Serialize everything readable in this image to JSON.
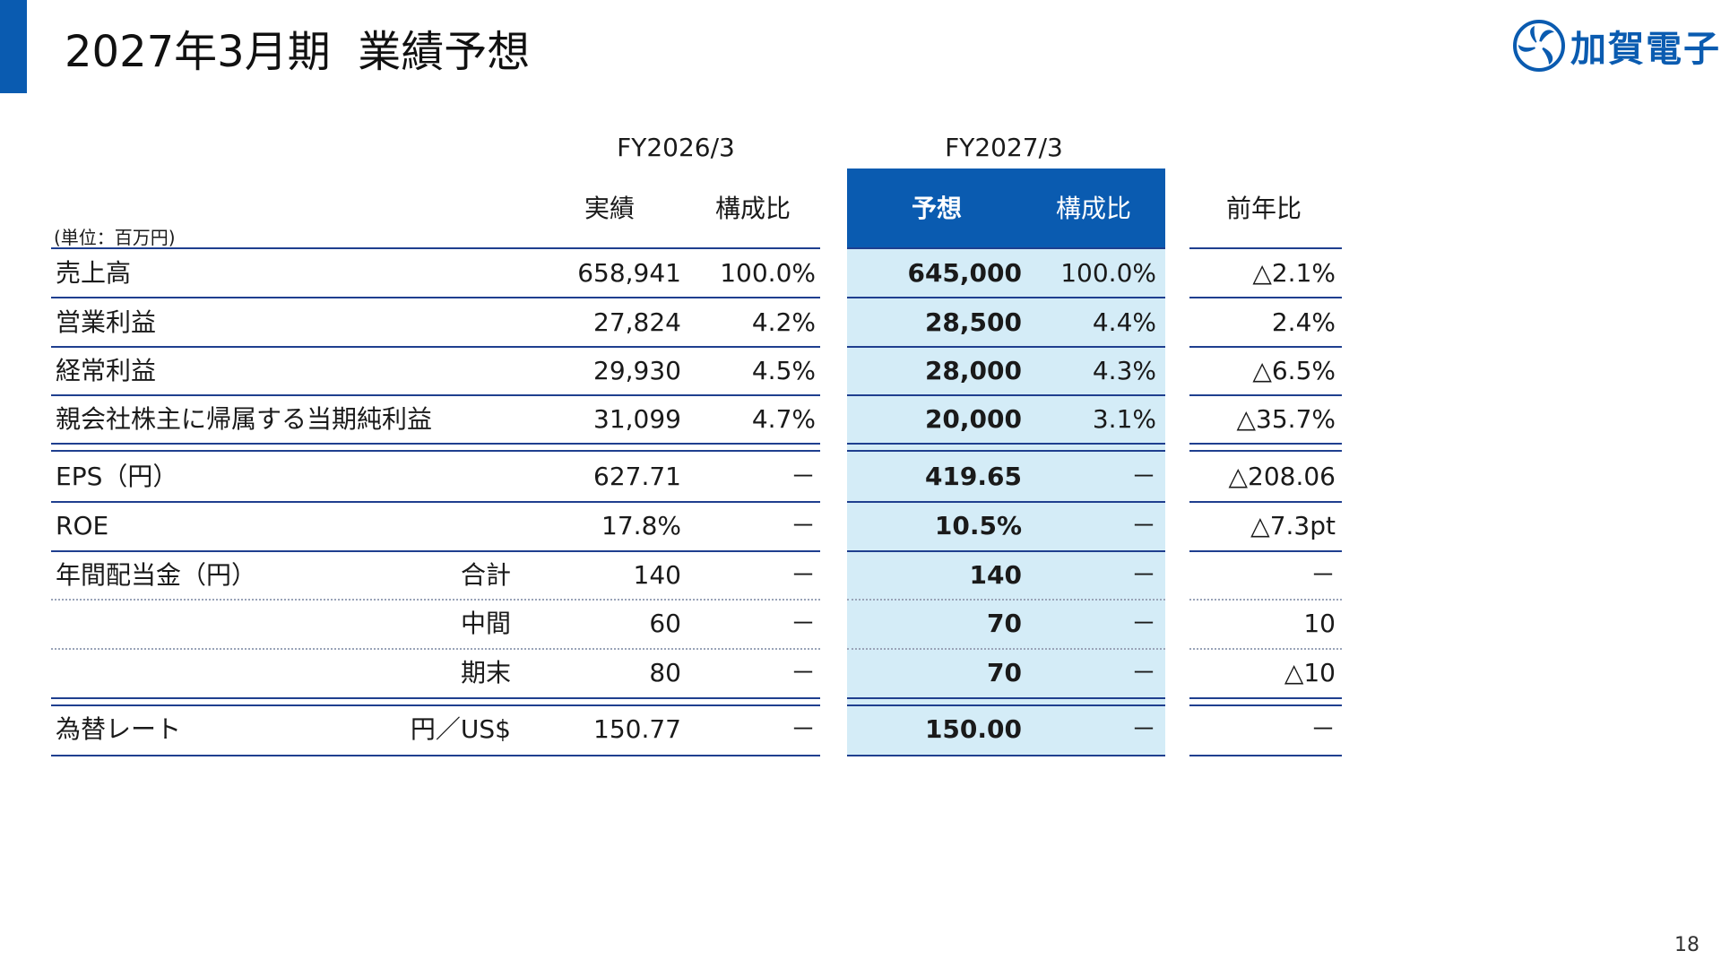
{
  "header": {
    "title": "2027年3月期  業績予想"
  },
  "logo": {
    "text": "加賀電子"
  },
  "page_number": "18",
  "table": {
    "unit_label": "(単位：百万円)",
    "periods": {
      "actual": "FY2026/3",
      "forecast": "FY2027/3"
    },
    "columns": {
      "actual": "実績",
      "actual_ratio": "構成比",
      "forecast": "予想",
      "forecast_ratio": "構成比",
      "yoy": "前年比"
    },
    "rows": [
      {
        "label": "売上高",
        "sub": "",
        "actual": "658,941",
        "actual_ratio": "100.0%",
        "forecast": "645,000",
        "forecast_ratio": "100.0%",
        "yoy": "△2.1%"
      },
      {
        "label": "営業利益",
        "sub": "",
        "actual": "27,824",
        "actual_ratio": "4.2%",
        "forecast": "28,500",
        "forecast_ratio": "4.4%",
        "yoy": "2.4%"
      },
      {
        "label": "経常利益",
        "sub": "",
        "actual": "29,930",
        "actual_ratio": "4.5%",
        "forecast": "28,000",
        "forecast_ratio": "4.3%",
        "yoy": "△6.5%"
      },
      {
        "label": "親会社株主に帰属する当期純利益",
        "sub": "",
        "actual": "31,099",
        "actual_ratio": "4.7%",
        "forecast": "20,000",
        "forecast_ratio": "3.1%",
        "yoy": "△35.7%"
      },
      {
        "label": "EPS（円）",
        "sub": "",
        "actual": "627.71",
        "actual_ratio": "－",
        "forecast": "419.65",
        "forecast_ratio": "－",
        "yoy": "△208.06"
      },
      {
        "label": "ROE",
        "sub": "",
        "actual": "17.8%",
        "actual_ratio": "－",
        "forecast": "10.5%",
        "forecast_ratio": "－",
        "yoy": "△7.3pt"
      },
      {
        "label": "年間配当金（円）",
        "sub": "合計",
        "actual": "140",
        "actual_ratio": "－",
        "forecast": "140",
        "forecast_ratio": "－",
        "yoy": "－"
      },
      {
        "label": "",
        "sub": "中間",
        "actual": "60",
        "actual_ratio": "－",
        "forecast": "70",
        "forecast_ratio": "－",
        "yoy": "10"
      },
      {
        "label": "",
        "sub": "期末",
        "actual": "80",
        "actual_ratio": "－",
        "forecast": "70",
        "forecast_ratio": "－",
        "yoy": "△10"
      },
      {
        "label": "為替レート",
        "sub": "円／US$",
        "actual": "150.77",
        "actual_ratio": "－",
        "forecast": "150.00",
        "forecast_ratio": "－",
        "yoy": "－"
      }
    ]
  }
}
